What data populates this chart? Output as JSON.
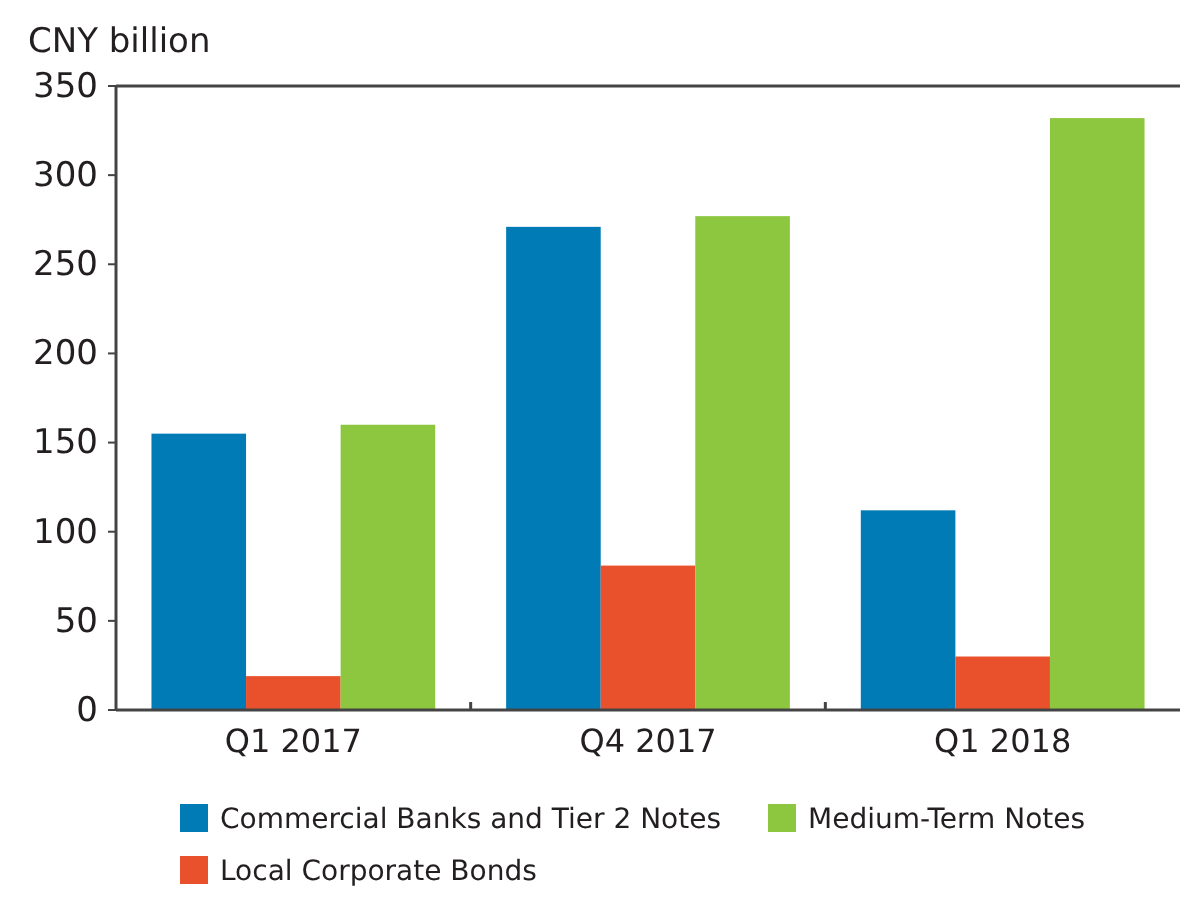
{
  "chart_data": {
    "type": "bar",
    "ylabel": "CNY billion",
    "categories": [
      "Q1 2017",
      "Q4 2017",
      "Q1 2018"
    ],
    "series": [
      {
        "name": "Commercial Banks and Tier 2 Notes",
        "color": "#007bb6",
        "values": [
          155,
          271,
          112
        ]
      },
      {
        "name": "Local Corporate Bonds",
        "color": "#e8512b",
        "values": [
          19,
          81,
          30
        ]
      },
      {
        "name": "Medium-Term Notes",
        "color": "#8dc63f",
        "values": [
          160,
          277,
          332
        ]
      }
    ],
    "ylim": [
      0,
      350
    ],
    "yticks": [
      0,
      50,
      100,
      150,
      200,
      250,
      300,
      350
    ],
    "grid": false,
    "legend": "bottom"
  }
}
